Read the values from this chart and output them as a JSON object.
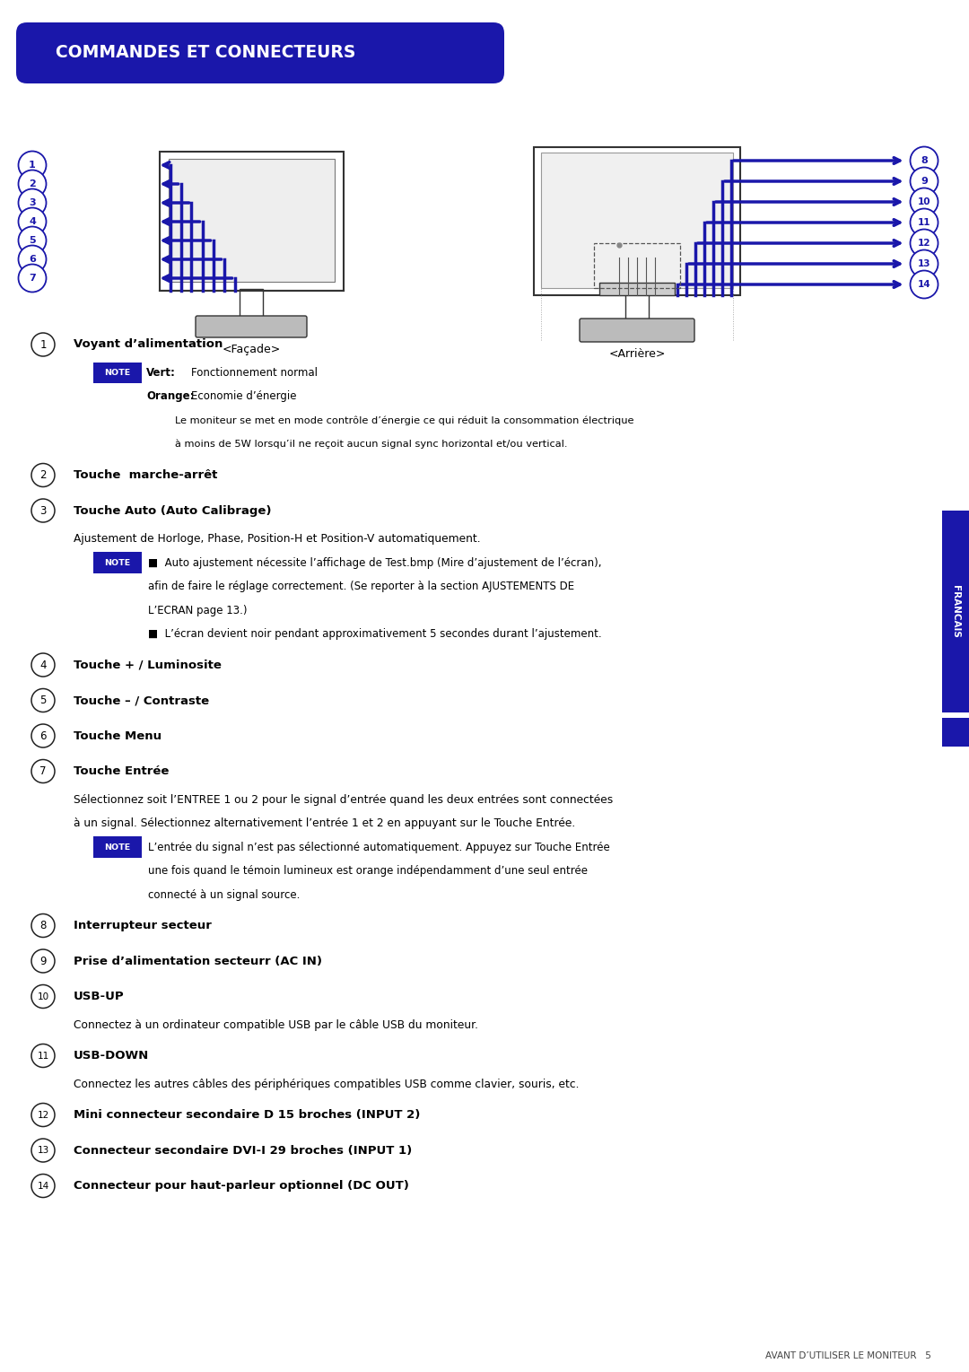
{
  "title": "COMMANDES ET CONNECTEURS",
  "title_bg": "#1a17aa",
  "title_fg": "#ffffff",
  "blue": "#1a17aa",
  "note_bg": "#1a17aa",
  "note_fg": "#ffffff",
  "sidebar_text": "FRANCAIS",
  "sidebar_bg": "#1a17aa",
  "facade_label": "<Façade>",
  "arriere_label": "<Arrière>",
  "front_nums": [
    "1",
    "2",
    "3",
    "4",
    "5",
    "6",
    "7"
  ],
  "back_nums": [
    "8",
    "9",
    "10",
    "11",
    "12",
    "13",
    "14"
  ],
  "items": [
    {
      "num": "1",
      "title": "Voyant d’alimentation",
      "sub": [
        {
          "type": "note_line",
          "label": "Vert:",
          "text": "Fonctionnement normal"
        },
        {
          "type": "indent_line",
          "label": "Orange:",
          "text": "Economie d’énergie"
        },
        {
          "type": "indent_text",
          "text": "Le moniteur se met en mode contrôle d’énergie ce qui réduit la consommation électrique"
        },
        {
          "type": "indent_text",
          "text": "à moins de 5W lorsqu’il ne reçoit aucun signal sync horizontal et/ou vertical."
        }
      ]
    },
    {
      "num": "2",
      "title": "Touche  marche-arrêt",
      "sub": []
    },
    {
      "num": "3",
      "title": "Touche Auto (Auto Calibrage)",
      "sub": [
        {
          "type": "plain_text",
          "text": "Ajustement de Horloge, Phase, Position-H et Position-V automatiquement."
        },
        {
          "type": "note_bullet",
          "text": "■  Auto ajustement nécessite l’affichage de Test.bmp (Mire d’ajustement de l’écran),"
        },
        {
          "type": "note_cont",
          "text": "afin de faire le réglage correctement. (Se reporter à la section AJUSTEMENTS DE"
        },
        {
          "type": "note_cont",
          "text": "L’ECRAN page 13.)"
        },
        {
          "type": "note_bullet2",
          "text": "■  L’écran devient noir pendant approximativement 5 secondes durant l’ajustement."
        }
      ]
    },
    {
      "num": "4",
      "title": "Touche + / Luminosite",
      "sub": []
    },
    {
      "num": "5",
      "title": "Touche – / Contraste",
      "sub": []
    },
    {
      "num": "6",
      "title": "Touche Menu",
      "sub": []
    },
    {
      "num": "7",
      "title": "Touche Entrée",
      "sub": [
        {
          "type": "plain_text",
          "text": "Sélectionnez soit l’ENTREE 1 ou 2 pour le signal d’entrée quand les deux entrées sont connectées"
        },
        {
          "type": "plain_text",
          "text": "à un signal. Sélectionnez alternativement l’entrée 1 et 2 en appuyant sur le Touche Entrée."
        },
        {
          "type": "note_line2",
          "text": "L’entrée du signal n’est pas sélectionné automatiquement. Appuyez sur Touche Entrée"
        },
        {
          "type": "note_cont",
          "text": "une fois quand le témoin lumineux est orange indépendamment d’une seul entrée"
        },
        {
          "type": "note_cont",
          "text": "connecté à un signal source."
        }
      ]
    },
    {
      "num": "8",
      "title": "Interrupteur secteur",
      "sub": []
    },
    {
      "num": "9",
      "title": "Prise d’alimentation secteurr (AC IN)",
      "sub": []
    },
    {
      "num": "10",
      "title": "USB-UP",
      "sub": [
        {
          "type": "plain_text",
          "text": "Connectez à un ordinateur compatible USB par le câble USB du moniteur."
        }
      ]
    },
    {
      "num": "11",
      "title": "USB-DOWN",
      "sub": [
        {
          "type": "plain_text",
          "text": "Connectez les autres câbles des périphériques compatibles USB comme clavier, souris, etc."
        }
      ]
    },
    {
      "num": "12",
      "title": "Mini connecteur secondaire D 15 broches (INPUT 2)",
      "sub": []
    },
    {
      "num": "13",
      "title": "Connecteur secondaire DVI-I 29 broches (INPUT 1)",
      "sub": []
    },
    {
      "num": "14",
      "title": "Connecteur pour haut-parleur optionnel (DC OUT)",
      "sub": []
    }
  ],
  "footer": "AVANT D’UTILISER LE MONITEUR   5"
}
